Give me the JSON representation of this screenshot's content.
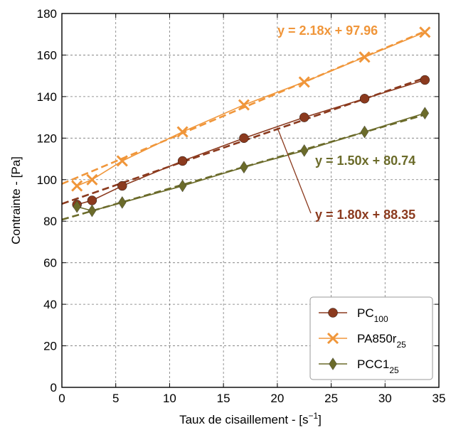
{
  "chart_data": {
    "type": "line",
    "xlabel": "Taux de cisaillement - [s",
    "xlabel_sup": "−1",
    "xlabel_end": "]",
    "ylabel": "Contrainte - [Pa]",
    "xlim": [
      0,
      35
    ],
    "ylim": [
      0,
      180
    ],
    "xticks": [
      0,
      5,
      10,
      15,
      20,
      25,
      30,
      35
    ],
    "yticks": [
      0,
      20,
      40,
      60,
      80,
      100,
      120,
      140,
      160,
      180
    ],
    "grid": true,
    "legend_position": "bottom-right",
    "series": [
      {
        "name": "PC",
        "name_sub": "100",
        "color": "#8b3a1e",
        "marker": "circle",
        "x": [
          1.4,
          2.8,
          5.6,
          11.2,
          16.9,
          22.5,
          28.1,
          33.7
        ],
        "y": [
          88,
          90,
          97,
          109,
          120,
          130,
          139,
          148
        ],
        "fit": {
          "slope": 1.8,
          "intercept": 88.35,
          "label": "y = 1.80x + 88.35"
        }
      },
      {
        "name": "PA850r",
        "name_sub": "25",
        "color": "#f0963a",
        "marker": "x",
        "x": [
          1.4,
          2.8,
          5.6,
          11.2,
          16.9,
          22.5,
          28.1,
          33.7
        ],
        "y": [
          97,
          100,
          109,
          123,
          136,
          147,
          159,
          171
        ],
        "fit": {
          "slope": 2.18,
          "intercept": 97.96,
          "label": "y = 2.18x + 97.96"
        }
      },
      {
        "name": "PCC1",
        "name_sub": "25",
        "color": "#6b6b2a",
        "marker": "diamond",
        "x": [
          1.4,
          2.8,
          5.6,
          11.2,
          16.9,
          22.5,
          28.1,
          33.7
        ],
        "y": [
          87,
          85,
          89,
          97,
          106,
          114,
          123,
          132
        ],
        "fit": {
          "slope": 1.5,
          "intercept": 80.74,
          "label": "y = 1.50x + 80.74"
        }
      }
    ]
  }
}
